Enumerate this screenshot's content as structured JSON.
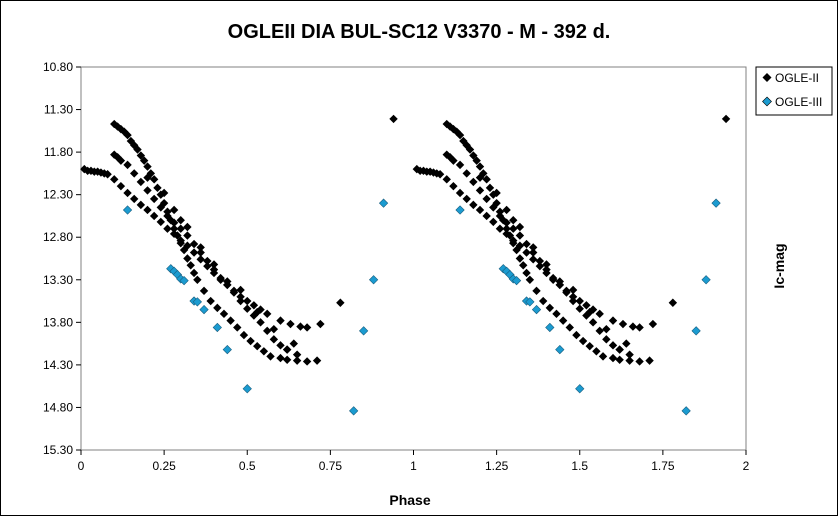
{
  "chart_data": {
    "type": "scatter",
    "title": "OGLEII DIA BUL-SC12 V3370 - M - 392 d.",
    "xlabel": "Phase",
    "ylabel": "Ic-mag",
    "xlim": [
      0,
      2
    ],
    "ylim": [
      10.8,
      15.3
    ],
    "y_inverted": true,
    "x_ticks": [
      0,
      0.25,
      0.5,
      0.75,
      1,
      1.25,
      1.5,
      1.75,
      2
    ],
    "x_tick_labels": [
      "0",
      "0.25",
      "0.5",
      "0.75",
      "1",
      "1.25",
      "1.5",
      "1.75",
      "2"
    ],
    "y_ticks": [
      10.8,
      11.3,
      11.8,
      12.3,
      12.8,
      13.3,
      13.8,
      14.3,
      14.8,
      15.3
    ],
    "y_tick_labels": [
      "10.80",
      "11.30",
      "11.80",
      "12.30",
      "12.80",
      "13.30",
      "13.80",
      "14.30",
      "14.80",
      "15.30"
    ],
    "grid": false,
    "legend_position": "top-right",
    "phase_repeat": 1,
    "series": [
      {
        "name": "OGLE-II",
        "color": "#000000",
        "marker": "diamond",
        "points": [
          [
            0.01,
            12.0
          ],
          [
            0.02,
            12.02
          ],
          [
            0.03,
            12.02
          ],
          [
            0.04,
            12.03
          ],
          [
            0.05,
            12.03
          ],
          [
            0.06,
            12.04
          ],
          [
            0.07,
            12.05
          ],
          [
            0.08,
            12.06
          ],
          [
            0.1,
            11.47
          ],
          [
            0.11,
            11.5
          ],
          [
            0.12,
            11.53
          ],
          [
            0.13,
            11.56
          ],
          [
            0.14,
            11.6
          ],
          [
            0.15,
            11.67
          ],
          [
            0.16,
            11.72
          ],
          [
            0.17,
            11.77
          ],
          [
            0.18,
            11.84
          ],
          [
            0.19,
            11.9
          ],
          [
            0.2,
            11.97
          ],
          [
            0.21,
            12.05
          ],
          [
            0.22,
            12.12
          ],
          [
            0.23,
            12.22
          ],
          [
            0.24,
            12.3
          ],
          [
            0.25,
            12.4
          ],
          [
            0.26,
            12.5
          ],
          [
            0.27,
            12.6
          ],
          [
            0.28,
            12.7
          ],
          [
            0.29,
            12.78
          ],
          [
            0.3,
            12.87
          ],
          [
            0.31,
            12.95
          ],
          [
            0.32,
            13.05
          ],
          [
            0.33,
            13.13
          ],
          [
            0.34,
            13.22
          ],
          [
            0.35,
            13.3
          ],
          [
            0.37,
            13.43
          ],
          [
            0.39,
            13.55
          ],
          [
            0.41,
            13.63
          ],
          [
            0.43,
            13.7
          ],
          [
            0.45,
            13.78
          ],
          [
            0.47,
            13.86
          ],
          [
            0.49,
            13.95
          ],
          [
            0.51,
            14.02
          ],
          [
            0.53,
            14.08
          ],
          [
            0.55,
            14.14
          ],
          [
            0.57,
            14.2
          ],
          [
            0.6,
            14.22
          ],
          [
            0.62,
            14.24
          ],
          [
            0.65,
            14.25
          ],
          [
            0.68,
            14.26
          ],
          [
            0.71,
            14.25
          ],
          [
            0.1,
            11.83
          ],
          [
            0.11,
            11.86
          ],
          [
            0.12,
            11.9
          ],
          [
            0.14,
            11.95
          ],
          [
            0.16,
            12.05
          ],
          [
            0.18,
            12.15
          ],
          [
            0.2,
            12.25
          ],
          [
            0.22,
            12.35
          ],
          [
            0.24,
            12.45
          ],
          [
            0.26,
            12.55
          ],
          [
            0.28,
            12.63
          ],
          [
            0.3,
            12.7
          ],
          [
            0.32,
            12.78
          ],
          [
            0.34,
            12.88
          ],
          [
            0.36,
            12.98
          ],
          [
            0.38,
            13.08
          ],
          [
            0.4,
            13.18
          ],
          [
            0.42,
            13.28
          ],
          [
            0.44,
            13.36
          ],
          [
            0.46,
            13.43
          ],
          [
            0.48,
            13.5
          ],
          [
            0.5,
            13.55
          ],
          [
            0.52,
            13.6
          ],
          [
            0.54,
            13.65
          ],
          [
            0.56,
            13.7
          ],
          [
            0.6,
            13.78
          ],
          [
            0.63,
            13.82
          ],
          [
            0.66,
            13.85
          ],
          [
            0.68,
            13.86
          ],
          [
            0.1,
            12.12
          ],
          [
            0.12,
            12.2
          ],
          [
            0.14,
            12.28
          ],
          [
            0.16,
            12.35
          ],
          [
            0.18,
            12.42
          ],
          [
            0.2,
            12.48
          ],
          [
            0.22,
            12.55
          ],
          [
            0.24,
            12.62
          ],
          [
            0.26,
            12.7
          ],
          [
            0.28,
            12.76
          ],
          [
            0.3,
            12.84
          ],
          [
            0.32,
            12.9
          ],
          [
            0.34,
            12.98
          ],
          [
            0.36,
            13.06
          ],
          [
            0.38,
            13.14
          ],
          [
            0.4,
            13.22
          ],
          [
            0.42,
            13.3
          ],
          [
            0.44,
            13.36
          ],
          [
            0.46,
            13.45
          ],
          [
            0.48,
            13.55
          ],
          [
            0.5,
            13.64
          ],
          [
            0.52,
            13.72
          ],
          [
            0.54,
            13.8
          ],
          [
            0.56,
            13.9
          ],
          [
            0.58,
            14.0
          ],
          [
            0.6,
            14.07
          ],
          [
            0.62,
            14.12
          ],
          [
            0.65,
            14.18
          ],
          [
            0.2,
            12.1
          ],
          [
            0.25,
            12.28
          ],
          [
            0.28,
            12.48
          ],
          [
            0.3,
            12.6
          ],
          [
            0.32,
            12.68
          ],
          [
            0.36,
            12.92
          ],
          [
            0.4,
            13.12
          ],
          [
            0.44,
            13.32
          ],
          [
            0.48,
            13.42
          ],
          [
            0.53,
            13.68
          ],
          [
            0.58,
            13.88
          ],
          [
            0.62,
            14.12
          ],
          [
            0.64,
            14.05
          ],
          [
            0.72,
            13.82
          ],
          [
            0.78,
            13.57
          ],
          [
            0.94,
            11.41
          ]
        ]
      },
      {
        "name": "OGLE-III",
        "color": "#1B9BD0",
        "marker": "diamond",
        "points": [
          [
            0.14,
            12.48
          ],
          [
            0.27,
            13.17
          ],
          [
            0.28,
            13.2
          ],
          [
            0.29,
            13.24
          ],
          [
            0.3,
            13.29
          ],
          [
            0.31,
            13.31
          ],
          [
            0.34,
            13.55
          ],
          [
            0.35,
            13.56
          ],
          [
            0.37,
            13.65
          ],
          [
            0.41,
            13.86
          ],
          [
            0.44,
            14.12
          ],
          [
            0.5,
            14.58
          ],
          [
            0.82,
            14.84
          ],
          [
            0.85,
            13.9
          ],
          [
            0.88,
            13.3
          ],
          [
            0.91,
            12.4
          ]
        ]
      }
    ]
  }
}
